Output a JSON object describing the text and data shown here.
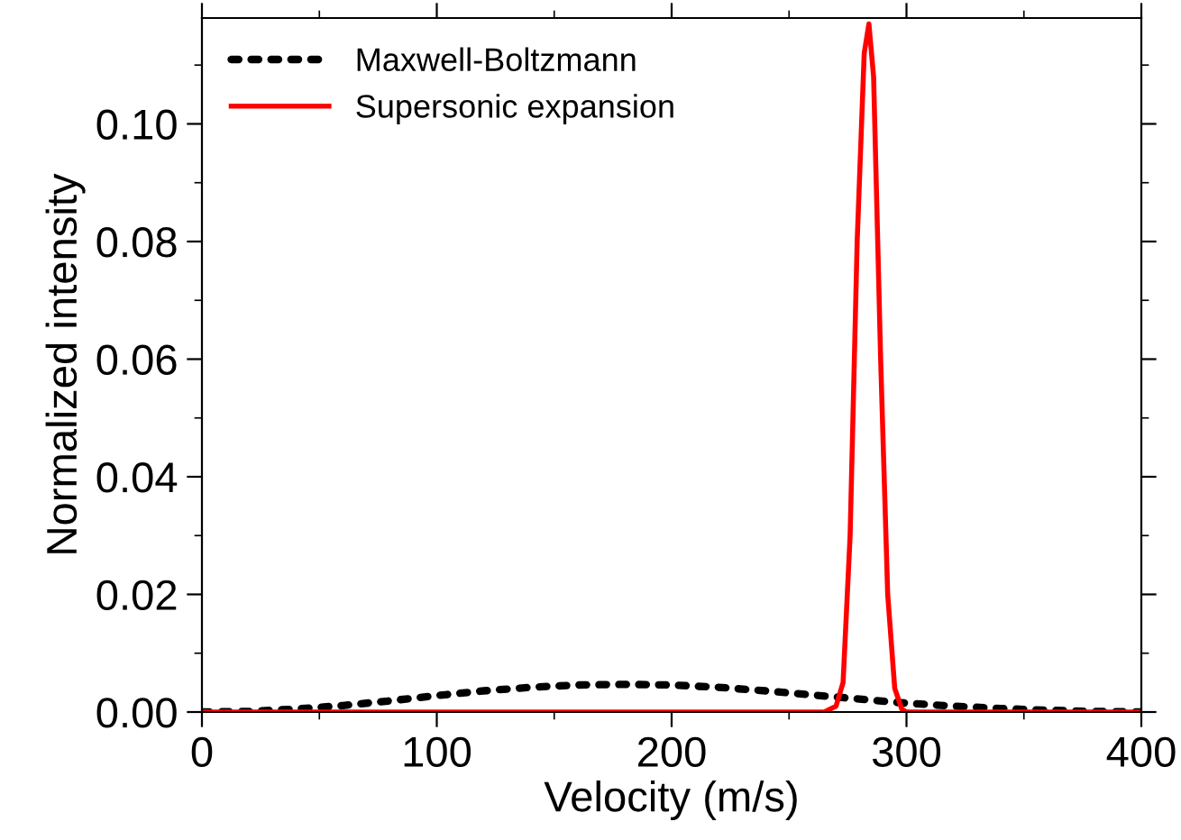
{
  "chart_data": {
    "type": "line",
    "xlabel": "Velocity (m/s)",
    "ylabel": "Normalized intensity",
    "xlim": [
      0,
      400
    ],
    "xticks": [
      0,
      100,
      200,
      300,
      400
    ],
    "ylim": [
      0,
      0.118
    ],
    "yticks": [
      {
        "value": 0,
        "label": "0.00"
      },
      {
        "value": 0.02,
        "label": "0.02"
      },
      {
        "value": 0.04,
        "label": "0.04"
      },
      {
        "value": 0.06,
        "label": "0.06"
      },
      {
        "value": 0.08,
        "label": "0.08"
      },
      {
        "value": 0.1,
        "label": "0.10"
      }
    ],
    "grid": false,
    "legend": "top left",
    "series": [
      {
        "name": "Maxwell-Boltzmann",
        "color": "#000000",
        "line_style": "dotted",
        "x": [
          0,
          20,
          40,
          60,
          80,
          100,
          120,
          140,
          160,
          180,
          200,
          220,
          240,
          260,
          280,
          300,
          320,
          340,
          360,
          380,
          400
        ],
        "values": [
          0,
          0.0001,
          0.0005,
          0.0011,
          0.0019,
          0.0028,
          0.0036,
          0.0042,
          0.0046,
          0.0047,
          0.0046,
          0.0042,
          0.0036,
          0.0029,
          0.0022,
          0.0015,
          0.001,
          0.0006,
          0.0003,
          0.0001,
          0
        ]
      },
      {
        "name": "Supersonic expansion",
        "color": "#ff0000",
        "line_style": "solid",
        "x": [
          0,
          265,
          270,
          273,
          276,
          279,
          282,
          284,
          286,
          289,
          292,
          295,
          298,
          300,
          400
        ],
        "values": [
          0,
          0,
          0.001,
          0.005,
          0.03,
          0.08,
          0.112,
          0.117,
          0.108,
          0.06,
          0.02,
          0.004,
          0.0005,
          0,
          0
        ]
      }
    ]
  }
}
